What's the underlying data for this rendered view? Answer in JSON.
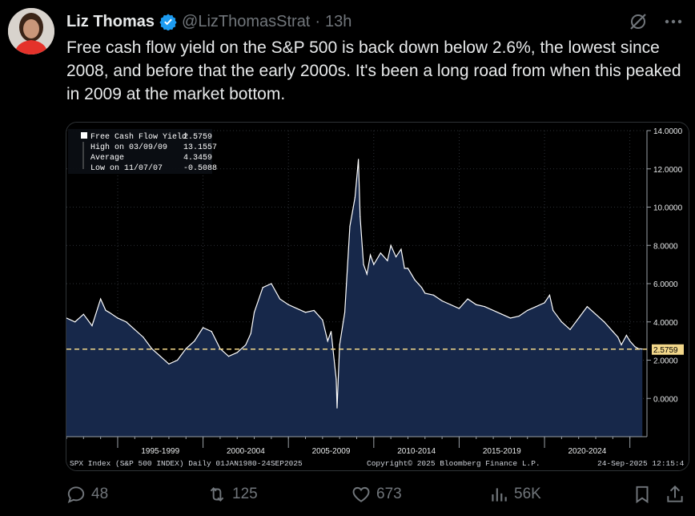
{
  "tweet": {
    "author_name": "Liz Thomas",
    "handle": "@LizThomasStrat",
    "separator": "·",
    "time": "13h",
    "text": "Free cash flow yield on the S&P 500 is back down below 2.6%, the lowest since 2008, and before that the early 2000s. It's been a long road from when this peaked in 2009 at the market bottom."
  },
  "actions": {
    "replies": "48",
    "reposts": "125",
    "likes": "673",
    "views": "56K"
  },
  "colors": {
    "background": "#000000",
    "accent_verified": "#1d9bf0",
    "muted": "#71767b",
    "area_fill": "#17284a",
    "line": "#ffffff",
    "last_value_dash": "#f2d78a"
  },
  "chart_data": {
    "type": "area",
    "title": "",
    "legend": {
      "series_label": "Free Cash Flow Yield",
      "series_value": "2.5759",
      "high_label": "High on 03/09/09",
      "high_value": "13.1557",
      "avg_label": "Average",
      "avg_value": "4.3459",
      "low_label": "Low on 11/07/07",
      "low_value": "-0.5088"
    },
    "last_value": 2.5759,
    "last_value_label": "2.5759",
    "ylim": [
      -2,
      14
    ],
    "y_ticks": [
      0,
      2,
      4,
      6,
      8,
      10,
      12,
      14
    ],
    "y_tick_labels": [
      "0.0000",
      "2.0000",
      "4.0000",
      "6.0000",
      "8.0000",
      "10.0000",
      "12.0000",
      "14.0000"
    ],
    "x_range": [
      1992.0,
      2026.0
    ],
    "x_category_labels": [
      "1995-1999",
      "2000-2004",
      "2005-2009",
      "2010-2014",
      "2015-2019",
      "2020-2024"
    ],
    "x_category_centers": [
      1997.5,
      2002.5,
      2007.5,
      2012.5,
      2017.5,
      2022.5
    ],
    "x_dividers": [
      1995.0,
      2000.0,
      2005.0,
      2010.0,
      2015.0,
      2020.0,
      2025.0
    ],
    "x": [
      1992.0,
      1992.5,
      1993.0,
      1993.5,
      1994.0,
      1994.3,
      1994.5,
      1995.0,
      1995.5,
      1996.0,
      1996.5,
      1997.0,
      1997.5,
      1998.0,
      1998.5,
      1999.0,
      1999.5,
      2000.0,
      2000.5,
      2001.0,
      2001.5,
      2002.0,
      2002.5,
      2002.8,
      2003.0,
      2003.5,
      2004.0,
      2004.5,
      2005.0,
      2005.5,
      2006.0,
      2006.5,
      2007.0,
      2007.3,
      2007.5,
      2007.8,
      2007.85,
      2008.0,
      2008.3,
      2008.6,
      2008.9,
      2009.1,
      2009.2,
      2009.4,
      2009.6,
      2009.8,
      2010.0,
      2010.4,
      2010.8,
      2011.0,
      2011.3,
      2011.6,
      2011.8,
      2012.0,
      2012.4,
      2012.8,
      2013.0,
      2013.5,
      2014.0,
      2014.5,
      2015.0,
      2015.5,
      2016.0,
      2016.5,
      2017.0,
      2017.5,
      2018.0,
      2018.5,
      2019.0,
      2019.5,
      2020.0,
      2020.3,
      2020.5,
      2021.0,
      2021.5,
      2022.0,
      2022.5,
      2023.0,
      2023.5,
      2024.0,
      2024.3,
      2024.5,
      2024.8,
      2025.0,
      2025.3,
      2025.5,
      2025.73
    ],
    "y": [
      4.2,
      4.0,
      4.4,
      3.8,
      5.2,
      4.6,
      4.5,
      4.2,
      4.0,
      3.6,
      3.2,
      2.6,
      2.2,
      1.8,
      2.0,
      2.6,
      3.0,
      3.7,
      3.5,
      2.6,
      2.2,
      2.4,
      2.8,
      3.4,
      4.5,
      5.8,
      6.0,
      5.2,
      4.9,
      4.7,
      4.5,
      4.6,
      4.1,
      3.0,
      3.5,
      1.0,
      -0.5,
      2.8,
      4.5,
      9.0,
      10.5,
      12.5,
      9.5,
      7.0,
      6.5,
      7.5,
      7.0,
      7.6,
      7.2,
      8.0,
      7.4,
      7.8,
      6.8,
      6.8,
      6.2,
      5.8,
      5.5,
      5.4,
      5.1,
      4.9,
      4.7,
      5.2,
      4.9,
      4.8,
      4.6,
      4.4,
      4.2,
      4.3,
      4.6,
      4.8,
      5.0,
      5.4,
      4.6,
      4.0,
      3.6,
      4.2,
      4.8,
      4.4,
      4.0,
      3.5,
      3.2,
      2.8,
      3.3,
      3.0,
      2.7,
      2.6,
      2.58
    ]
  },
  "chart_text": {
    "footer_left": "SPX Index (S&P 500 INDEX)  Daily 01JAN1980-24SEP2025",
    "footer_mid": "Copyright© 2025 Bloomberg Finance L.P.",
    "footer_right": "24-Sep-2025 12:15:4"
  }
}
